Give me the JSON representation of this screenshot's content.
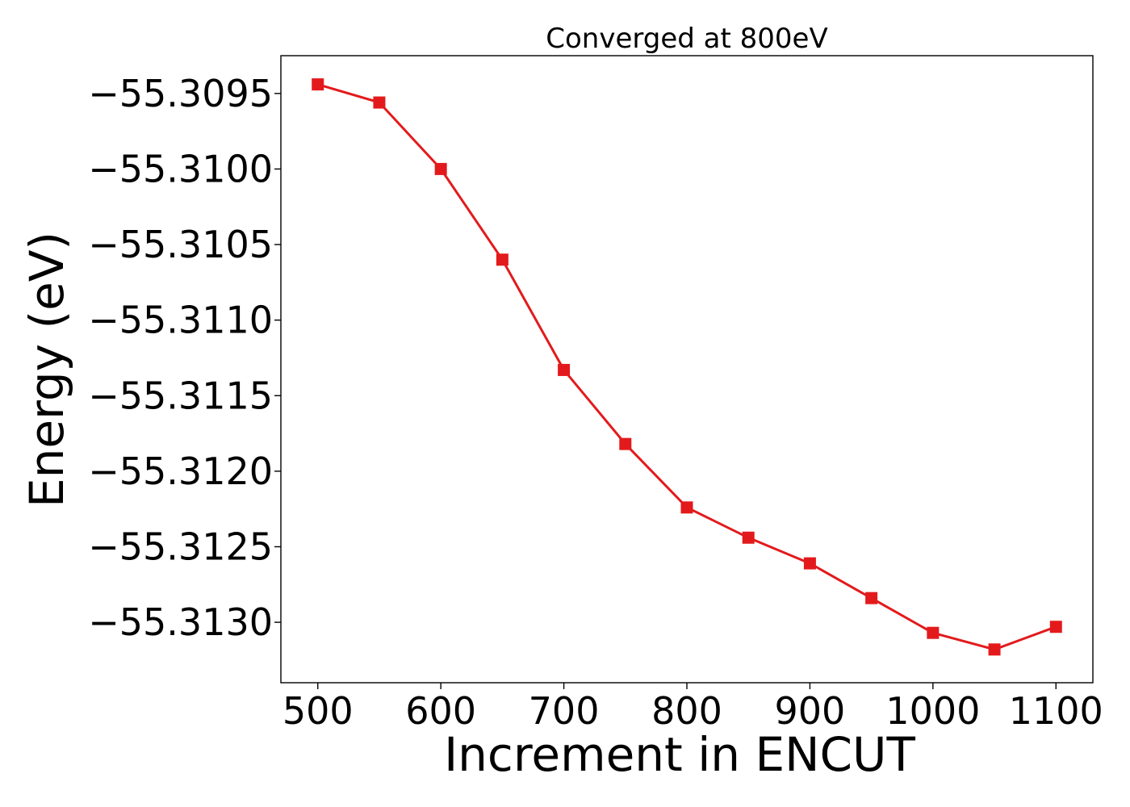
{
  "chart_data": {
    "type": "line",
    "title": "Converged at 800eV",
    "xlabel": "Increment in ENCUT",
    "ylabel": "Energy (eV)",
    "xlim": [
      470,
      1130
    ],
    "ylim": [
      -55.3134,
      -55.30925
    ],
    "x_ticks": [
      500,
      600,
      700,
      800,
      900,
      1000,
      1100
    ],
    "x_tick_labels": [
      "500",
      "600",
      "700",
      "800",
      "900",
      "1000",
      "1100"
    ],
    "y_ticks": [
      -55.3095,
      -55.31,
      -55.3105,
      -55.311,
      -55.3115,
      -55.312,
      -55.3125,
      -55.313
    ],
    "y_tick_labels": [
      "−55.3095",
      "−55.3100",
      "−55.3105",
      "−55.3110",
      "−55.3115",
      "−55.3120",
      "−55.3125",
      "−55.3130"
    ],
    "grid": false,
    "series": [
      {
        "color": "#e31a1c",
        "marker": "square",
        "x": [
          500,
          550,
          600,
          650,
          700,
          750,
          800,
          850,
          900,
          950,
          1000,
          1050,
          1100
        ],
        "y": [
          -55.30944,
          -55.30956,
          -55.31,
          -55.3106,
          -55.31133,
          -55.31182,
          -55.31224,
          -55.31244,
          -55.31261,
          -55.31284,
          -55.31307,
          -55.31318,
          -55.31303
        ]
      }
    ]
  }
}
